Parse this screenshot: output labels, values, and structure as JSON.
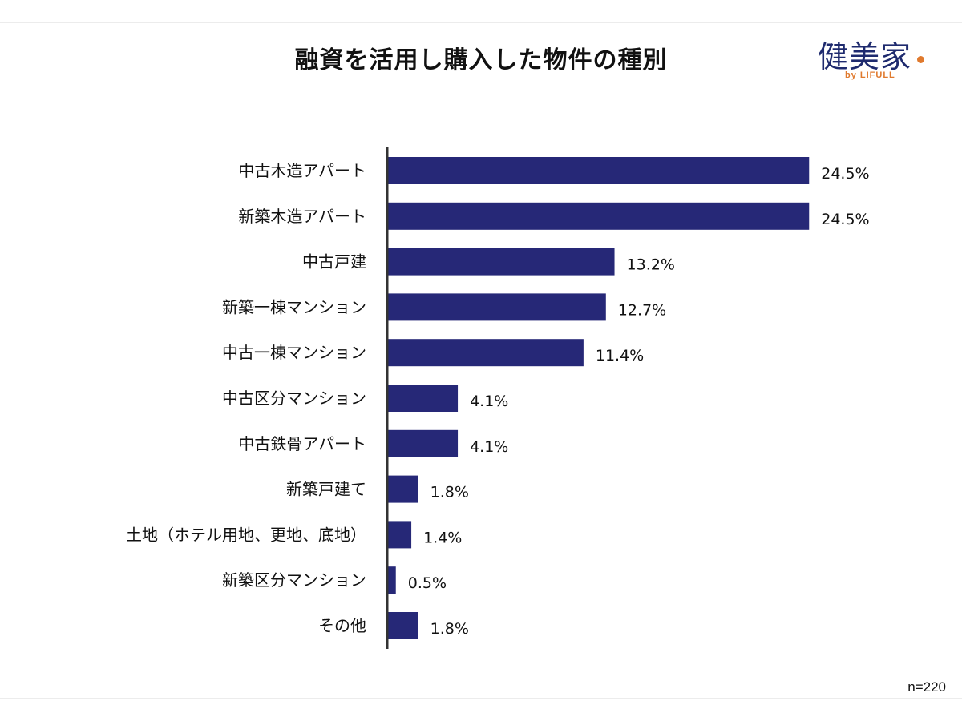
{
  "title": "融資を活用し購入した物件の種別",
  "logo": {
    "main": "健美家",
    "sub": "by LIFULL"
  },
  "note": "n=220",
  "colors": {
    "bar": "#262877",
    "axis": "#333333",
    "logo_accent": "#e07a2e"
  },
  "chart_data": {
    "type": "bar",
    "orientation": "horizontal",
    "categories": [
      "中古木造アパート",
      "新築木造アパート",
      "中古戸建",
      "新築一棟マンション",
      "中古一棟マンション",
      "中古区分マンション",
      "中古鉄骨アパート",
      "新築戸建て",
      "土地（ホテル用地、更地、底地）",
      "新築区分マンション",
      "その他"
    ],
    "values": [
      24.5,
      24.5,
      13.2,
      12.7,
      11.4,
      4.1,
      4.1,
      1.8,
      1.4,
      0.5,
      1.8
    ],
    "value_labels": [
      "24.5%",
      "24.5%",
      "13.2%",
      "12.7%",
      "11.4%",
      "4.1%",
      "4.1%",
      "1.8%",
      "1.4%",
      "0.5%",
      "1.8%"
    ],
    "unit": "%",
    "xlim": [
      0,
      25
    ],
    "grid": false,
    "legend": false
  }
}
